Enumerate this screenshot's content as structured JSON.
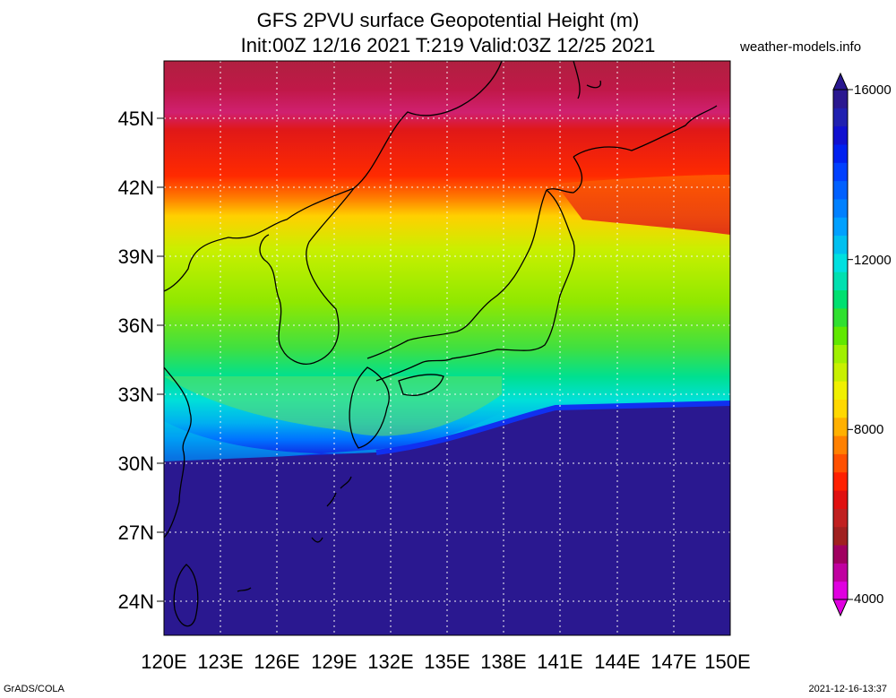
{
  "title_line1": "GFS 2PVU surface Geopotential Height (m)",
  "title_line2": "Init:00Z 12/16 2021 T:219 Valid:03Z 12/25 2021",
  "site": "weather-models.info",
  "footer_left": "GrADS/COLA",
  "footer_right": "2021-12-16-13:37",
  "map": {
    "lon_range": [
      120,
      150
    ],
    "lat_range": [
      22.5,
      47.5
    ],
    "lon_ticks": [
      "120E",
      "123E",
      "126E",
      "129E",
      "132E",
      "135E",
      "138E",
      "141E",
      "144E",
      "147E",
      "150E"
    ],
    "lat_ticks": [
      "24N",
      "27N",
      "30N",
      "33N",
      "36N",
      "39N",
      "42N",
      "45N"
    ],
    "grid": "dotted"
  },
  "colorbar": {
    "min": 4000,
    "max": 16000,
    "labels": [
      "16000",
      "12000",
      "8000",
      "4000"
    ],
    "colors": [
      "#e000e0",
      "#c000a0",
      "#a00060",
      "#a02020",
      "#c02020",
      "#e01010",
      "#ff2000",
      "#ff5000",
      "#ff8000",
      "#ffb000",
      "#ffd800",
      "#f0f000",
      "#c8f000",
      "#a0f000",
      "#60e800",
      "#30e030",
      "#00e070",
      "#00e0b0",
      "#00e0e0",
      "#00c0f0",
      "#00a0ff",
      "#0080ff",
      "#0060ff",
      "#0040ff",
      "#0020f0",
      "#1010d0",
      "#2020b0",
      "#2a1890"
    ]
  }
}
